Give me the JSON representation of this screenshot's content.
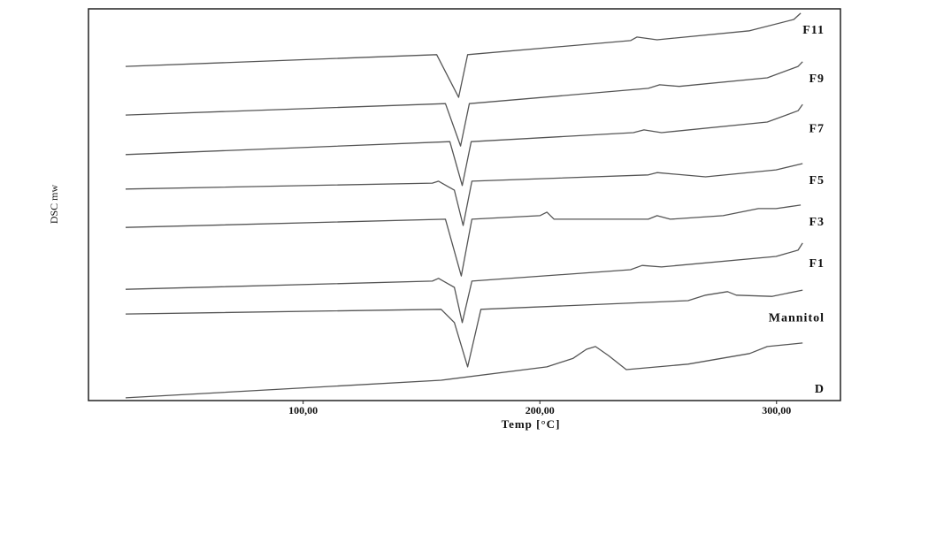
{
  "chart_data": {
    "type": "line",
    "x_label": "Temp [°C]",
    "y_label": "DSC mw",
    "xlim": [
      9.3,
      327
    ],
    "ylim": [
      0,
      100
    ],
    "xticks": [
      {
        "value": 100,
        "label": "100,00"
      },
      {
        "value": 200,
        "label": "200,00"
      },
      {
        "value": 300,
        "label": "300,00"
      }
    ],
    "color": "#555555",
    "series": [
      {
        "name": "F11",
        "x": [
          25,
          156.4,
          165.7,
          169.5,
          238.3,
          241,
          249.5,
          288.6,
          307.3,
          310.2
        ],
        "values": [
          85.3,
          88.3,
          77.4,
          88.3,
          91.9,
          92.8,
          92.1,
          94.4,
          97.3,
          98.9
        ]
      },
      {
        "name": "F9",
        "x": [
          25,
          160.1,
          166.5,
          170.2,
          245.8,
          250.6,
          258.9,
          296.1,
          309.1,
          311
        ],
        "values": [
          72.9,
          75.8,
          65.0,
          75.8,
          79.7,
          80.6,
          80.2,
          82.4,
          85.3,
          86.5
        ]
      },
      {
        "name": "F7",
        "x": [
          25,
          162,
          167.2,
          171,
          239.5,
          244,
          251.4,
          296.1,
          309.1,
          311
        ],
        "values": [
          62.8,
          66.1,
          54.9,
          66.1,
          68.4,
          69.1,
          68.4,
          71.1,
          74.0,
          75.6
        ]
      },
      {
        "name": "F5",
        "x": [
          25,
          154.6,
          157.2,
          163.9,
          167.6,
          171.3,
          245.8,
          249.5,
          270,
          299.8,
          311
        ],
        "values": [
          54.0,
          55.5,
          56.0,
          53.7,
          44.7,
          56.0,
          57.6,
          58.2,
          57.1,
          58.9,
          60.5
        ]
      },
      {
        "name": "F3",
        "x": [
          25,
          160.1,
          166.8,
          171.3,
          200,
          203,
          206,
          245.8,
          249.5,
          255.1,
          277.4,
          292.3,
          299.8,
          310.2
        ],
        "values": [
          44.2,
          46.3,
          31.8,
          46.3,
          47.2,
          48.1,
          46.3,
          46.3,
          47.2,
          46.3,
          47.2,
          49.0,
          49.0,
          49.9
        ]
      },
      {
        "name": "F1",
        "x": [
          25,
          154.6,
          157.2,
          163.9,
          167.2,
          171.3,
          238.3,
          243.2,
          251.4,
          299.8,
          309.1,
          311
        ],
        "values": [
          28.4,
          30.5,
          31.2,
          28.9,
          19.9,
          30.5,
          33.4,
          34.5,
          34.1,
          36.8,
          38.4,
          40.2
        ]
      },
      {
        "name": "Mannitol",
        "x": [
          25,
          158.3,
          163.9,
          169.5,
          175.1,
          262.6,
          270,
          279.3,
          283,
          298,
          311
        ],
        "values": [
          22.1,
          23.3,
          19.9,
          8.6,
          23.3,
          25.5,
          26.9,
          27.8,
          26.9,
          26.6,
          28.2
        ]
      },
      {
        "name": "D",
        "x": [
          25,
          158.3,
          203,
          214.1,
          219.7,
          223.5,
          229,
          236.5,
          262.6,
          288.6,
          296.1,
          311
        ],
        "values": [
          0.7,
          5.2,
          8.6,
          10.8,
          13.1,
          13.8,
          11.5,
          7.9,
          9.3,
          12.0,
          13.8,
          14.7
        ]
      }
    ]
  }
}
